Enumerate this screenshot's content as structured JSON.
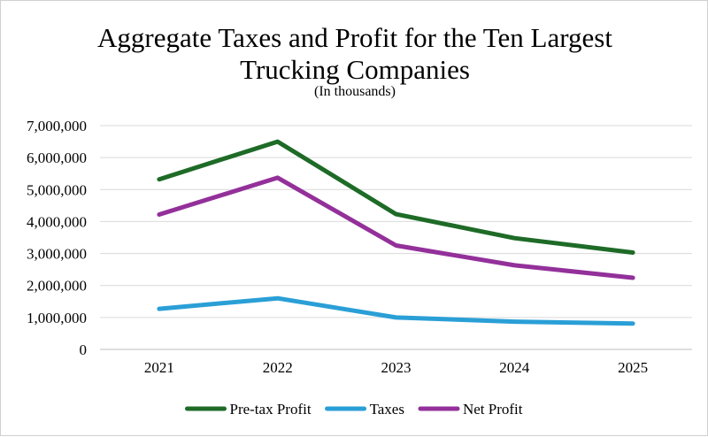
{
  "chart_data": {
    "type": "line",
    "title": "Aggregate Taxes and Profit for the Ten Largest Trucking Companies",
    "subtitle": "(In thousands)",
    "xlabel": "",
    "ylabel": "",
    "categories": [
      "2021",
      "2022",
      "2023",
      "2024",
      "2025"
    ],
    "ylim": [
      0,
      7000000
    ],
    "yticks": [
      "0",
      "1,000,000",
      "2,000,000",
      "3,000,000",
      "4,000,000",
      "5,000,000",
      "6,000,000",
      "7,000,000"
    ],
    "grid": true,
    "legend_position": "bottom",
    "series": [
      {
        "name": "Pre-tax Profit",
        "color": "#1e6b27",
        "values": [
          5320000,
          6500000,
          4230000,
          3480000,
          3030000
        ]
      },
      {
        "name": "Taxes",
        "color": "#2a9fd6",
        "values": [
          1270000,
          1600000,
          1000000,
          870000,
          810000
        ]
      },
      {
        "name": "Net Profit",
        "color": "#93309a",
        "values": [
          4220000,
          5370000,
          3250000,
          2630000,
          2240000
        ]
      }
    ]
  }
}
